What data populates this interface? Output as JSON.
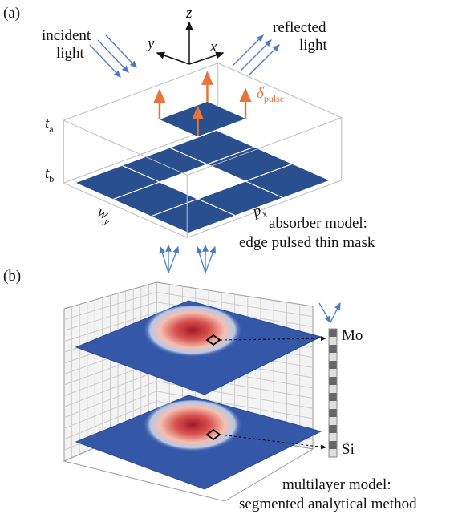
{
  "panel_a": {
    "label": "(a)",
    "axes": {
      "z": "z",
      "y": "y",
      "x": "x"
    },
    "incident": [
      "incident",
      "light"
    ],
    "reflected": [
      "reflected",
      "light"
    ],
    "delta": {
      "symbol": "δ",
      "subscript": "pulse"
    },
    "t_a": {
      "symbol": "t",
      "subscript": "a"
    },
    "t_b": {
      "symbol": "t",
      "subscript": "b"
    },
    "w_y": {
      "symbol": "w",
      "subscript": "y"
    },
    "p_x": {
      "symbol": "p",
      "subscript": "x"
    },
    "caption": [
      "absorber model:",
      "edge pulsed thin mask"
    ]
  },
  "panel_b": {
    "label": "(b)",
    "mo": "Mo",
    "si": "Si",
    "caption": [
      "multilayer model:",
      "segmented analytical method"
    ]
  }
}
